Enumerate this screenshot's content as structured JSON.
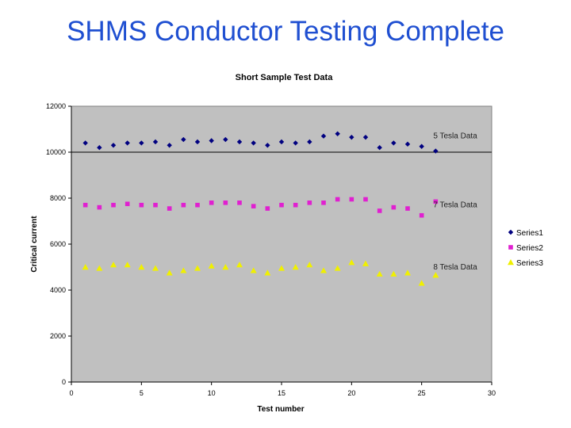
{
  "slide": {
    "title": "SHMS Conductor Testing Complete"
  },
  "chart_data": {
    "type": "scatter",
    "title": "Short Sample Test Data",
    "xlabel": "Test number",
    "ylabel": "Critical current",
    "xlim": [
      0,
      30
    ],
    "ylim": [
      0,
      12000
    ],
    "xticks": [
      0,
      5,
      10,
      15,
      20,
      25,
      30
    ],
    "yticks": [
      0,
      2000,
      4000,
      6000,
      8000,
      10000,
      12000
    ],
    "legend_position": "right",
    "reference_line_y": 10000,
    "annotations": [
      {
        "text": "5 Tesla Data",
        "x": 26,
        "y": 10700
      },
      {
        "text": "7 Tesla Data",
        "x": 26,
        "y": 7700
      },
      {
        "text": "8 Tesla Data",
        "x": 26,
        "y": 5000
      }
    ],
    "series": [
      {
        "name": "Series1",
        "marker": "diamond",
        "color": "#000080",
        "x": [
          1,
          2,
          3,
          4,
          5,
          6,
          7,
          8,
          9,
          10,
          11,
          12,
          13,
          14,
          15,
          16,
          17,
          18,
          19,
          20,
          21,
          22,
          23,
          24,
          25,
          26
        ],
        "y": [
          10400,
          10200,
          10300,
          10400,
          10400,
          10450,
          10300,
          10550,
          10450,
          10500,
          10550,
          10450,
          10400,
          10300,
          10450,
          10400,
          10450,
          10700,
          10800,
          10650,
          10650,
          10200,
          10400,
          10350,
          10250,
          10050
        ]
      },
      {
        "name": "Series2",
        "marker": "square",
        "color": "#e020d0",
        "x": [
          1,
          2,
          3,
          4,
          5,
          6,
          7,
          8,
          9,
          10,
          11,
          12,
          13,
          14,
          15,
          16,
          17,
          18,
          19,
          20,
          21,
          22,
          23,
          24,
          25,
          26
        ],
        "y": [
          7700,
          7600,
          7700,
          7750,
          7700,
          7700,
          7550,
          7700,
          7700,
          7800,
          7800,
          7800,
          7650,
          7550,
          7700,
          7700,
          7800,
          7800,
          7950,
          7950,
          7950,
          7450,
          7600,
          7550,
          7250,
          7850
        ]
      },
      {
        "name": "Series3",
        "marker": "triangle",
        "color": "#f0f000",
        "x": [
          1,
          2,
          3,
          4,
          5,
          6,
          7,
          8,
          9,
          10,
          11,
          12,
          13,
          14,
          15,
          16,
          17,
          18,
          19,
          20,
          21,
          22,
          23,
          24,
          25,
          26
        ],
        "y": [
          5000,
          4950,
          5100,
          5100,
          5000,
          4950,
          4750,
          4850,
          4950,
          5050,
          5000,
          5100,
          4850,
          4750,
          4950,
          5000,
          5100,
          4850,
          4950,
          5200,
          5150,
          4700,
          4700,
          4750,
          4300,
          4650
        ]
      }
    ]
  }
}
